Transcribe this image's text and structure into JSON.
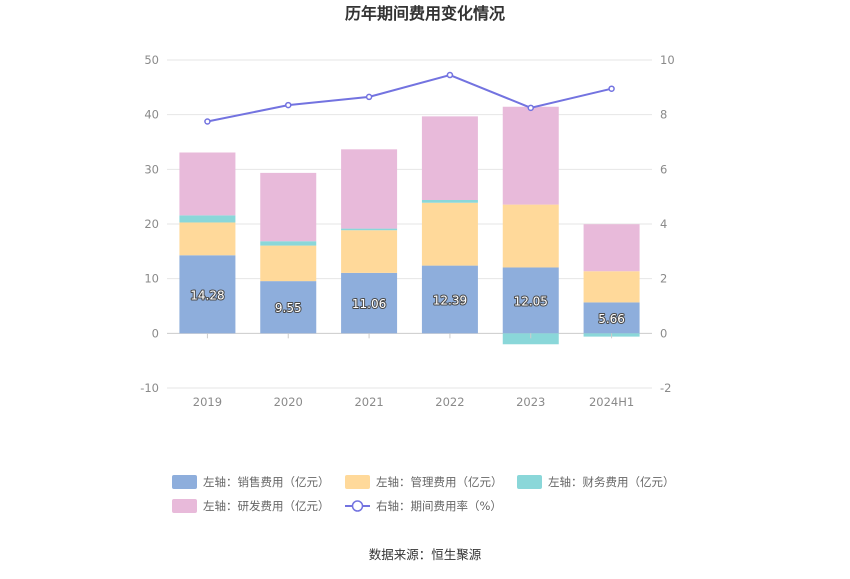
{
  "chart_data": {
    "type": "bar",
    "title": "历年期间费用变化情况",
    "categories": [
      "2019",
      "2020",
      "2021",
      "2022",
      "2023",
      "2024H1"
    ],
    "stacked": true,
    "series": [
      {
        "name": "左轴：销售费用（亿元）",
        "axis": "left",
        "color": "#8eaedc",
        "values": [
          14.28,
          9.55,
          11.06,
          12.39,
          12.05,
          5.66
        ],
        "labels": [
          "14.28",
          "9.55",
          "11.06",
          "12.39",
          "12.05",
          "5.66"
        ]
      },
      {
        "name": "左轴：管理费用（亿元）",
        "axis": "left",
        "color": "#ffd99a",
        "values": [
          6.0,
          6.5,
          7.8,
          11.5,
          11.5,
          5.7
        ]
      },
      {
        "name": "左轴：财务费用（亿元）",
        "axis": "left",
        "color": "#8ad7d9",
        "values": [
          1.3,
          0.8,
          0.3,
          0.5,
          -2.0,
          -0.6
        ]
      },
      {
        "name": "左轴：研发费用（亿元）",
        "axis": "left",
        "color": "#e8bada",
        "values": [
          11.5,
          12.5,
          14.5,
          15.3,
          17.9,
          8.6
        ]
      }
    ],
    "line": {
      "name": "右轴：期间费用率（%）",
      "axis": "right",
      "color": "#7373e0",
      "values": [
        7.75,
        8.35,
        8.65,
        9.45,
        8.25,
        8.95
      ]
    },
    "left_axis": {
      "min": -10,
      "max": 50,
      "ticks": [
        "-10",
        "0",
        "10",
        "20",
        "30",
        "40",
        "50"
      ]
    },
    "right_axis": {
      "min": -2,
      "max": 10,
      "ticks": [
        "-2",
        "0",
        "2",
        "4",
        "6",
        "8",
        "10"
      ]
    },
    "grid": true,
    "legend_position": "bottom"
  },
  "source": "数据来源：恒生聚源"
}
